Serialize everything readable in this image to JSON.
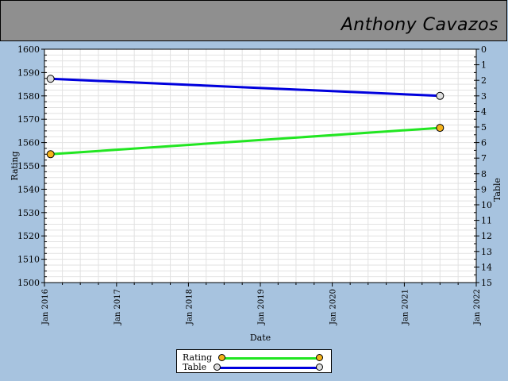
{
  "header": {
    "player_name": "Anthony Cavazos"
  },
  "colors": {
    "header_bg": "#8f8f8f",
    "page_bg": "#a7c3df",
    "rating_line": "#22e622",
    "table_line": "#0000dd",
    "rating_marker": "#f5b21a",
    "table_marker": "#dddddd"
  },
  "chart_data": {
    "type": "line",
    "title": "",
    "xlabel": "Date",
    "ylabel": "Rating",
    "y2label": "Table",
    "xlim": [
      "2016-01-01",
      "2022-01-01"
    ],
    "x_ticks": [
      "Jan 2016",
      "Jan 2017",
      "Jan 2018",
      "Jan 2019",
      "Jan 2020",
      "Jan 2021",
      "Jan 2022"
    ],
    "ylim": [
      1500,
      1600
    ],
    "y_ticks": [
      "1500",
      "1510",
      "1520",
      "1530",
      "1540",
      "1550",
      "1560",
      "1570",
      "1580",
      "1590",
      "1600"
    ],
    "y2lim": [
      15,
      0
    ],
    "y2_ticks": [
      "0",
      "1",
      "2",
      "3",
      "4",
      "5",
      "6",
      "7",
      "8",
      "9",
      "10",
      "11",
      "12",
      "13",
      "14",
      "15"
    ],
    "grid": true,
    "legend_position": "bottom-center",
    "series": [
      {
        "name": "Rating",
        "axis": "left",
        "x": [
          "2016-02-01",
          "2021-07-01"
        ],
        "y": [
          1555,
          1566.3
        ]
      },
      {
        "name": "Table",
        "axis": "right",
        "x": [
          "2016-02-01",
          "2021-07-01"
        ],
        "y": [
          1.9,
          3.0
        ]
      }
    ]
  }
}
